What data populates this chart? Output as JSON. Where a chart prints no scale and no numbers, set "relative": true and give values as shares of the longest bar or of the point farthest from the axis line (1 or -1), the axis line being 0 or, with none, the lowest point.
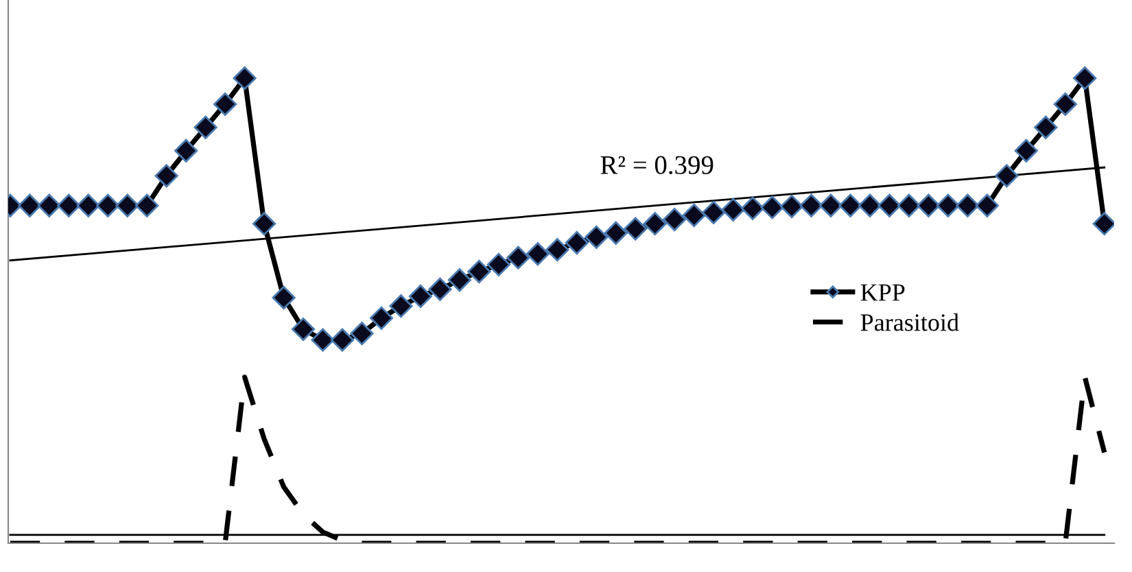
{
  "chart_data": {
    "type": "line",
    "relative": true,
    "categories": [
      null,
      null,
      null,
      null,
      null,
      null,
      null,
      null,
      null,
      null,
      null,
      null,
      null,
      null,
      null,
      null,
      null,
      null,
      null,
      null,
      null,
      null,
      null,
      null,
      null,
      null,
      null,
      null,
      null,
      null,
      null,
      null,
      null,
      null,
      null,
      null,
      null,
      null,
      null,
      null,
      null,
      null,
      null,
      null,
      null,
      null,
      null,
      null,
      null,
      null,
      null,
      null,
      null,
      null,
      null,
      null,
      null
    ],
    "series": [
      {
        "name": "KPP",
        "color": "#000000",
        "marker": "diamond",
        "line_style": "solid",
        "values": [
          0.726,
          0.726,
          0.726,
          0.726,
          0.726,
          0.726,
          0.726,
          0.726,
          0.79,
          0.844,
          0.894,
          0.944,
          1.0,
          0.687,
          0.528,
          0.46,
          0.437,
          0.437,
          0.451,
          0.484,
          0.51,
          0.531,
          0.546,
          0.566,
          0.584,
          0.599,
          0.614,
          0.622,
          0.631,
          0.646,
          0.658,
          0.667,
          0.676,
          0.687,
          0.696,
          0.705,
          0.711,
          0.717,
          0.72,
          0.722,
          0.724,
          0.726,
          0.726,
          0.726,
          0.726,
          0.726,
          0.726,
          0.726,
          0.726,
          0.726,
          0.726,
          0.79,
          0.844,
          0.894,
          0.944,
          1.0,
          0.687
        ]
      },
      {
        "name": "Parasitoid",
        "color": "#000000",
        "marker": "none",
        "line_style": "dashed",
        "values": [
          0,
          0,
          0,
          0,
          0,
          0,
          0,
          0,
          0,
          0,
          0,
          0,
          0.357,
          0.224,
          0.121,
          0.062,
          0.024,
          0.006,
          0,
          0,
          0,
          0,
          0,
          0,
          0,
          0,
          0,
          0,
          0,
          0,
          0,
          0,
          0,
          0,
          0,
          0,
          0,
          0,
          0,
          0,
          0,
          0,
          0,
          0,
          0,
          0,
          0,
          0,
          0,
          0,
          0,
          0,
          0,
          0,
          0,
          0.357,
          0.195
        ]
      },
      {
        "color": "#000000",
        "marker": "none",
        "line_style": "solid",
        "values": [
          0.608,
          null,
          null,
          null,
          null,
          null,
          null,
          null,
          null,
          null,
          null,
          null,
          null,
          null,
          null,
          null,
          null,
          null,
          null,
          null,
          null,
          null,
          null,
          null,
          null,
          null,
          null,
          null,
          null,
          null,
          null,
          null,
          null,
          null,
          null,
          null,
          null,
          null,
          null,
          null,
          null,
          null,
          null,
          null,
          null,
          null,
          null,
          null,
          null,
          null,
          null,
          null,
          null,
          null,
          null,
          null,
          0.808
        ]
      },
      {
        "color": "#000000",
        "marker": "none",
        "line_style": "solid",
        "values": [
          0.018,
          null,
          null,
          null,
          null,
          null,
          null,
          null,
          null,
          null,
          null,
          null,
          null,
          null,
          null,
          null,
          null,
          null,
          null,
          null,
          null,
          null,
          null,
          null,
          null,
          null,
          null,
          null,
          null,
          null,
          null,
          null,
          null,
          null,
          null,
          null,
          null,
          null,
          null,
          null,
          null,
          null,
          null,
          null,
          null,
          null,
          null,
          null,
          null,
          null,
          null,
          null,
          null,
          null,
          null,
          null,
          0.018
        ]
      }
    ],
    "annotations": [
      "R² = 0.399"
    ],
    "legend": "right"
  }
}
